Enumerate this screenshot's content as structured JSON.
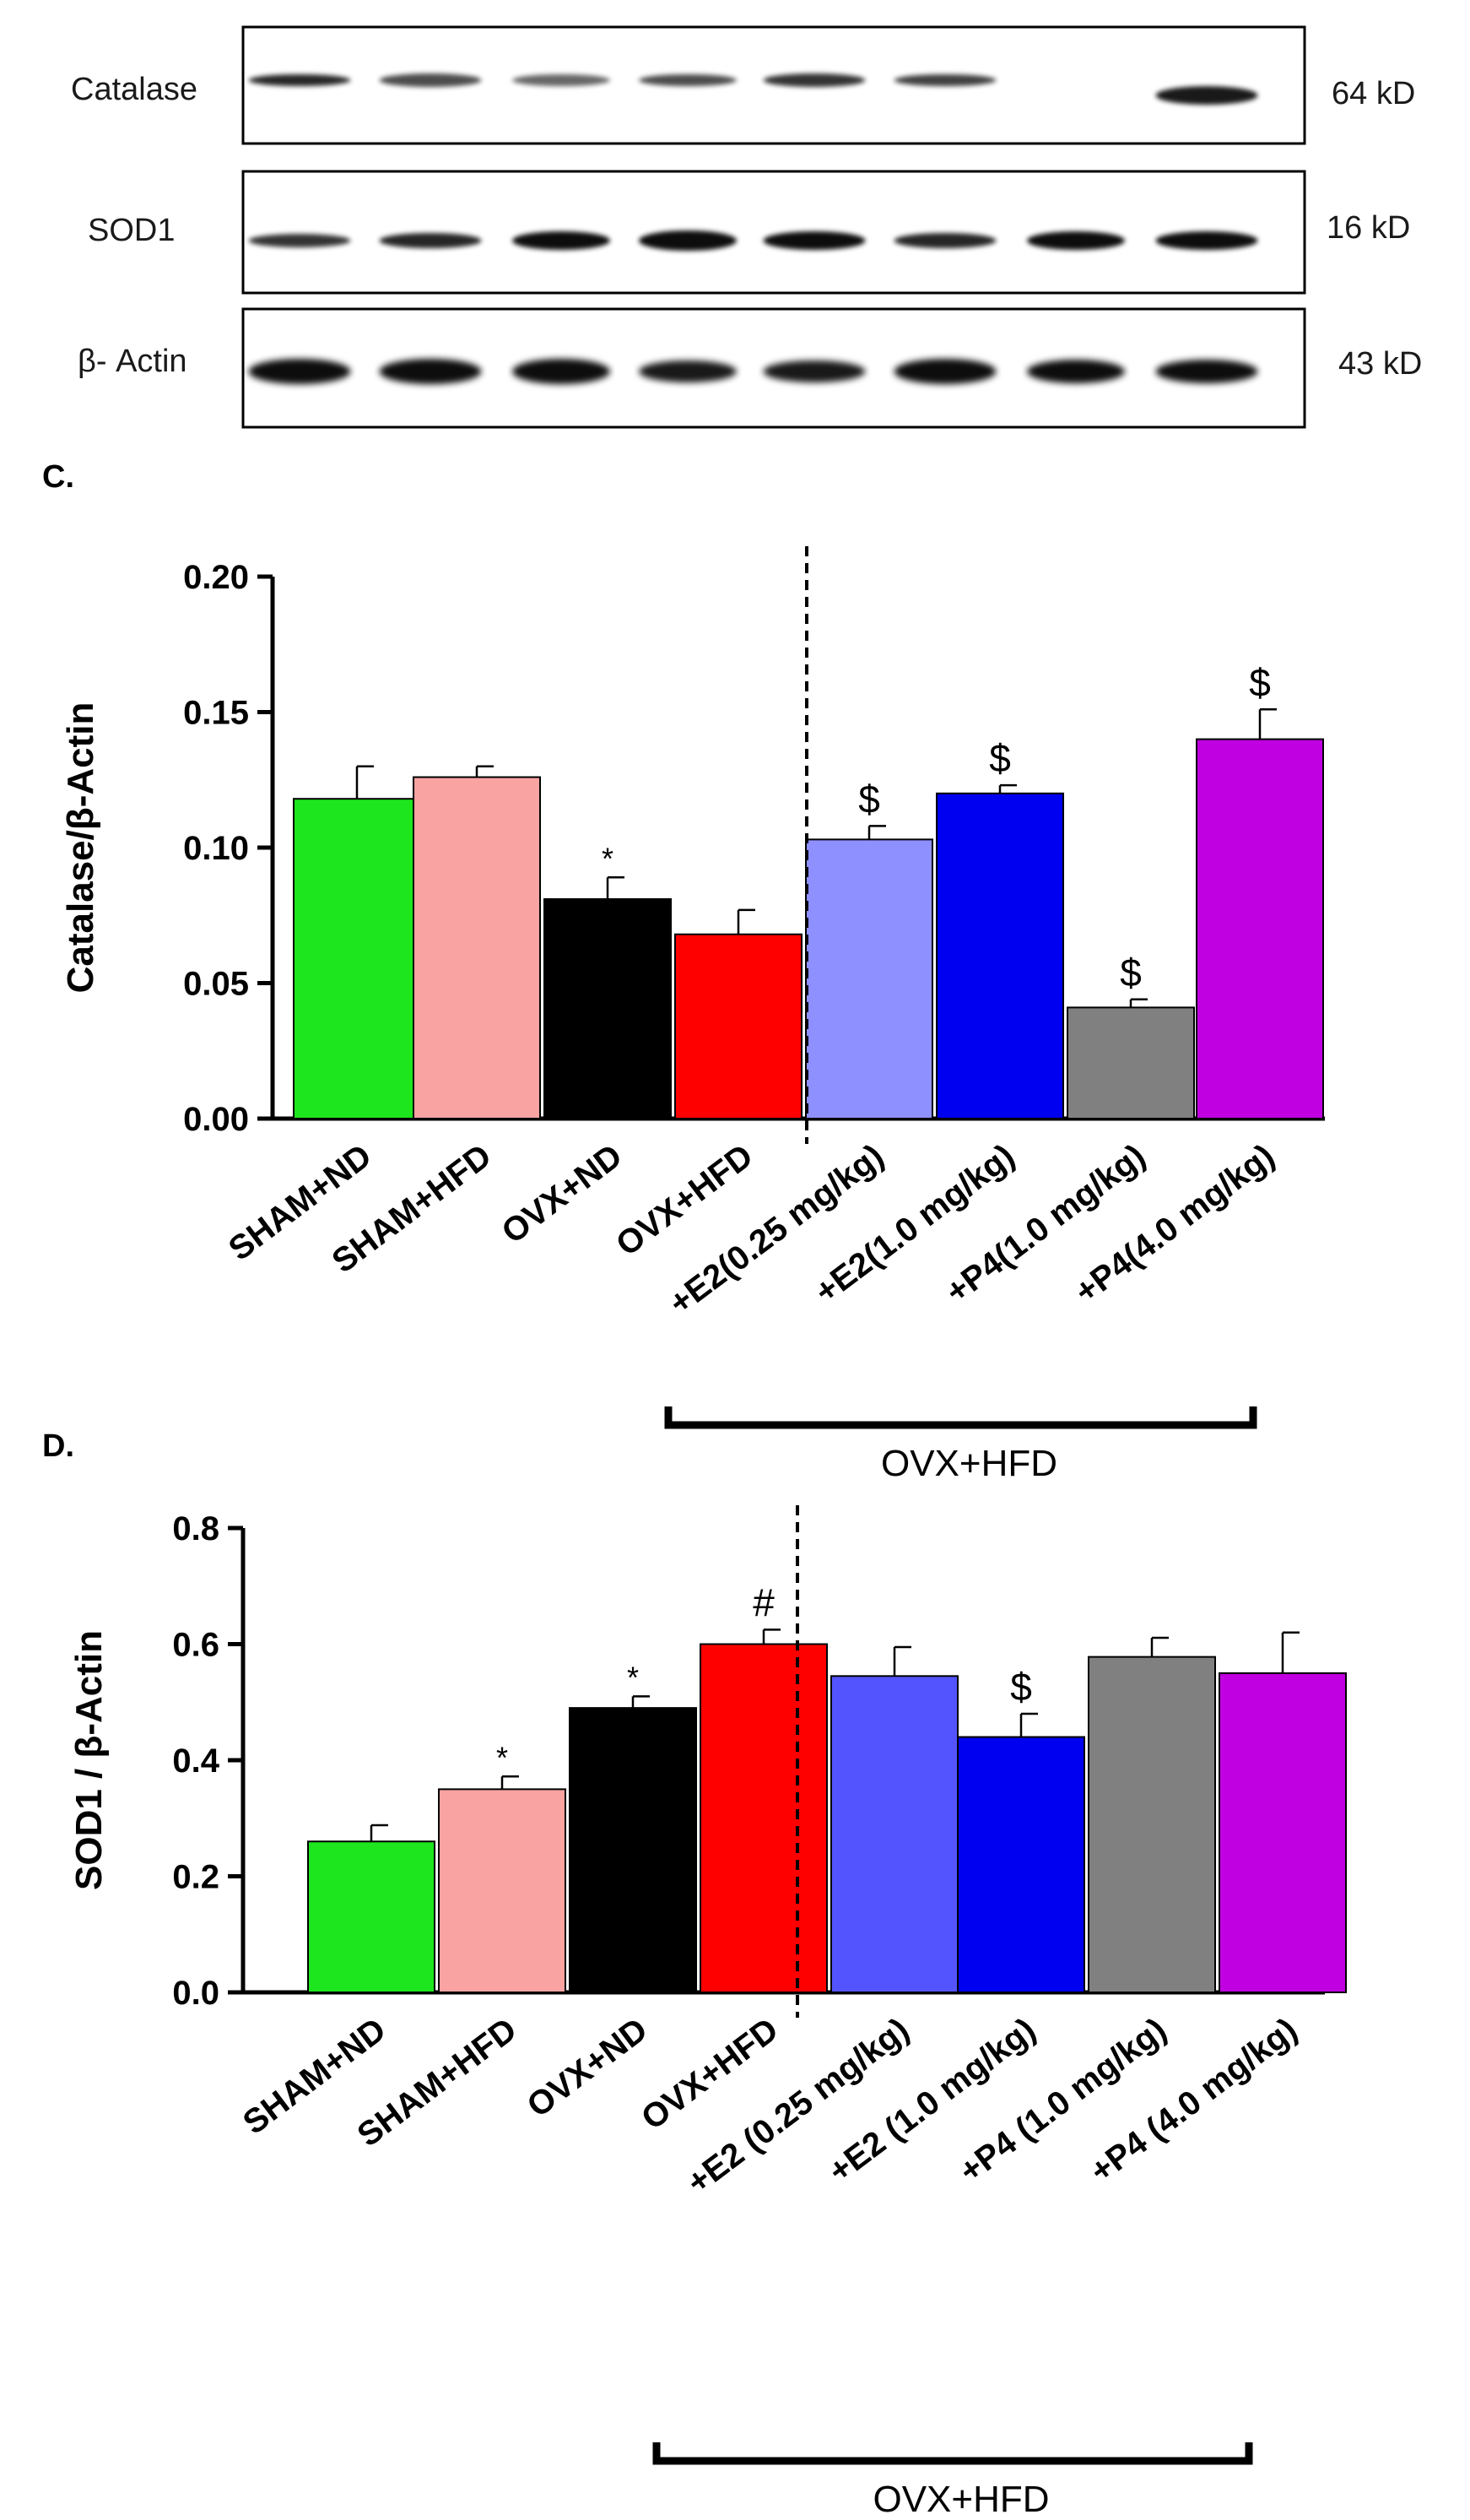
{
  "western_blot": {
    "rows": [
      {
        "label": "Catalase",
        "size": "64 kD"
      },
      {
        "label": "SOD1",
        "size": "16 kD"
      },
      {
        "label": "β- Actin",
        "size": "43 kD"
      }
    ]
  },
  "colors": {
    "SHAM+ND": "#1ee61e",
    "SHAM+HFD": "#f9a3a3",
    "OVX+ND": "#000000",
    "OVX+HFD": "#ff0000",
    "E2_low_C": "#8f90ff",
    "E2_low_D": "#5454ff",
    "E2_high": "#0000f0",
    "P4_low": "#808080",
    "P4_high": "#c000e0"
  },
  "chart_data": [
    {
      "panel": "C.",
      "type": "bar",
      "ylabel": "Catalase/β-Actin",
      "ylim": [
        0,
        0.2
      ],
      "yticks": [
        "0.00",
        "0.05",
        "0.10",
        "0.15",
        "0.20"
      ],
      "categories": [
        "SHAM+ND",
        "SHAM+HFD",
        "OVX+ND",
        "OVX+HFD",
        "+E2(0.25 mg/kg)",
        "+E2(1.0 mg/kg)",
        "+P4(1.0 mg/kg)",
        "+P4(4.0 mg/kg)"
      ],
      "values": [
        0.118,
        0.126,
        0.081,
        0.068,
        0.103,
        0.12,
        0.041,
        0.14
      ],
      "errors": [
        0.012,
        0.004,
        0.008,
        0.009,
        0.005,
        0.003,
        0.003,
        0.011
      ],
      "annotations": [
        "",
        "",
        "*",
        "",
        "$",
        "$",
        "$",
        "$"
      ],
      "group_label": "OVX+HFD"
    },
    {
      "panel": "D.",
      "type": "bar",
      "ylabel": "SOD1 / β-Actin",
      "ylim": [
        0,
        0.8
      ],
      "yticks": [
        "0.0",
        "0.2",
        "0.4",
        "0.6",
        "0.8"
      ],
      "categories": [
        "SHAM+ND",
        "SHAM+HFD",
        "OVX+ND",
        "OVX+HFD",
        "+E2 (0.25 mg/kg)",
        "+E2 (1.0 mg/kg)",
        "+P4 (1.0 mg/kg)",
        "+P4 (4.0 mg/kg)"
      ],
      "values": [
        0.26,
        0.35,
        0.49,
        0.6,
        0.545,
        0.44,
        0.578,
        0.55
      ],
      "errors": [
        0.028,
        0.022,
        0.02,
        0.025,
        0.05,
        0.04,
        0.033,
        0.07
      ],
      "annotations": [
        "",
        "*",
        "*",
        "#",
        "",
        "$",
        "",
        ""
      ],
      "group_label": "OVX+HFD"
    }
  ]
}
